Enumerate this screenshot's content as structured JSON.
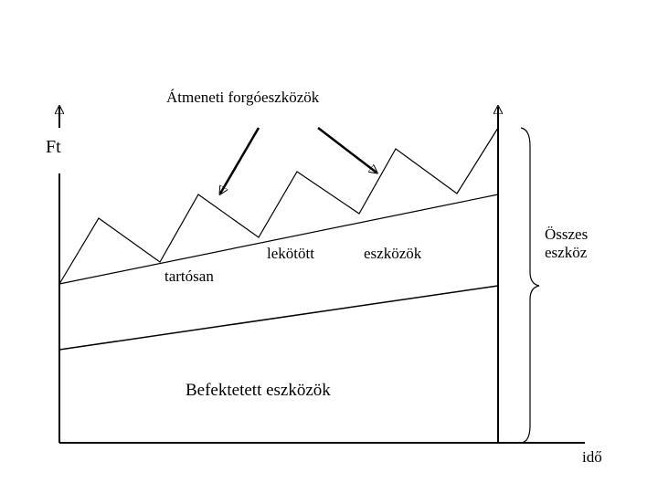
{
  "title": "Átmeneti forgóeszközök",
  "y_axis_label": "Ft",
  "x_axis_label": "idő",
  "middle_label": {
    "word1": "lekötött",
    "word2": "eszközök",
    "word3": "tartósan"
  },
  "brace_label": {
    "line1": "Összes",
    "line2": "eszköz"
  },
  "bottom_label": "Befektetett eszközök"
}
